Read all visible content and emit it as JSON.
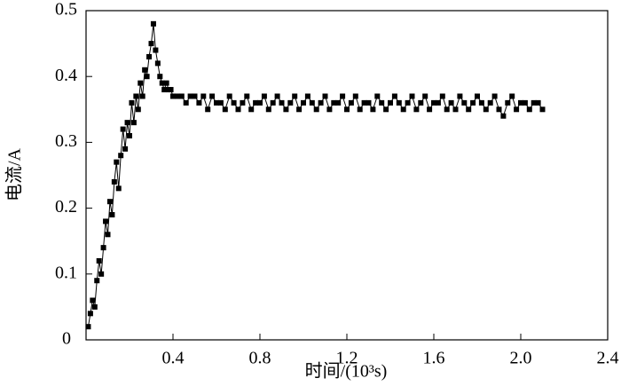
{
  "chart_data": {
    "type": "line",
    "xlabel": "时间/(10³s)",
    "ylabel": "电流/A",
    "color": "#000000",
    "x": [
      0.01,
      0.02,
      0.03,
      0.04,
      0.05,
      0.06,
      0.07,
      0.08,
      0.09,
      0.1,
      0.11,
      0.12,
      0.13,
      0.14,
      0.15,
      0.16,
      0.17,
      0.18,
      0.19,
      0.2,
      0.21,
      0.22,
      0.23,
      0.24,
      0.25,
      0.26,
      0.27,
      0.28,
      0.29,
      0.3,
      0.31,
      0.32,
      0.33,
      0.34,
      0.35,
      0.36,
      0.37,
      0.38,
      0.39,
      0.4,
      0.42,
      0.44,
      0.46,
      0.48,
      0.5,
      0.52,
      0.54,
      0.56,
      0.58,
      0.6,
      0.62,
      0.64,
      0.66,
      0.68,
      0.7,
      0.72,
      0.74,
      0.76,
      0.78,
      0.8,
      0.82,
      0.84,
      0.86,
      0.88,
      0.9,
      0.92,
      0.94,
      0.96,
      0.98,
      1.0,
      1.02,
      1.04,
      1.06,
      1.08,
      1.1,
      1.12,
      1.14,
      1.16,
      1.18,
      1.2,
      1.22,
      1.24,
      1.26,
      1.28,
      1.3,
      1.32,
      1.34,
      1.36,
      1.38,
      1.4,
      1.42,
      1.44,
      1.46,
      1.48,
      1.5,
      1.52,
      1.54,
      1.56,
      1.58,
      1.6,
      1.62,
      1.64,
      1.66,
      1.68,
      1.7,
      1.72,
      1.74,
      1.76,
      1.78,
      1.8,
      1.82,
      1.84,
      1.86,
      1.88,
      1.9,
      1.92,
      1.94,
      1.96,
      1.98,
      2.0,
      2.02,
      2.04,
      2.06,
      2.08,
      2.1
    ],
    "values": [
      0.02,
      0.04,
      0.06,
      0.05,
      0.09,
      0.12,
      0.1,
      0.14,
      0.18,
      0.16,
      0.21,
      0.19,
      0.24,
      0.27,
      0.23,
      0.28,
      0.32,
      0.29,
      0.33,
      0.31,
      0.36,
      0.33,
      0.37,
      0.35,
      0.39,
      0.37,
      0.41,
      0.4,
      0.43,
      0.45,
      0.48,
      0.44,
      0.42,
      0.4,
      0.39,
      0.38,
      0.39,
      0.38,
      0.38,
      0.37,
      0.37,
      0.37,
      0.36,
      0.37,
      0.37,
      0.36,
      0.37,
      0.35,
      0.37,
      0.36,
      0.36,
      0.35,
      0.37,
      0.36,
      0.35,
      0.36,
      0.37,
      0.35,
      0.36,
      0.36,
      0.37,
      0.35,
      0.36,
      0.37,
      0.36,
      0.35,
      0.36,
      0.37,
      0.35,
      0.36,
      0.37,
      0.36,
      0.35,
      0.36,
      0.37,
      0.35,
      0.36,
      0.36,
      0.37,
      0.35,
      0.36,
      0.37,
      0.35,
      0.36,
      0.36,
      0.35,
      0.37,
      0.36,
      0.35,
      0.36,
      0.37,
      0.36,
      0.35,
      0.36,
      0.37,
      0.35,
      0.36,
      0.37,
      0.35,
      0.36,
      0.36,
      0.37,
      0.35,
      0.36,
      0.35,
      0.37,
      0.36,
      0.35,
      0.36,
      0.37,
      0.36,
      0.35,
      0.36,
      0.37,
      0.35,
      0.34,
      0.36,
      0.37,
      0.35,
      0.36,
      0.36,
      0.35,
      0.36,
      0.36,
      0.35
    ],
    "xlim": [
      0,
      2.4
    ],
    "xticks": [
      0,
      0.4,
      0.8,
      1.2,
      1.6,
      {
        "value": 2,
        "label": "2.0"
      },
      2.4
    ],
    "ylim": [
      0,
      0.5
    ],
    "yticks": [
      0.1,
      0.2,
      0.3,
      0.4,
      0.5
    ]
  }
}
